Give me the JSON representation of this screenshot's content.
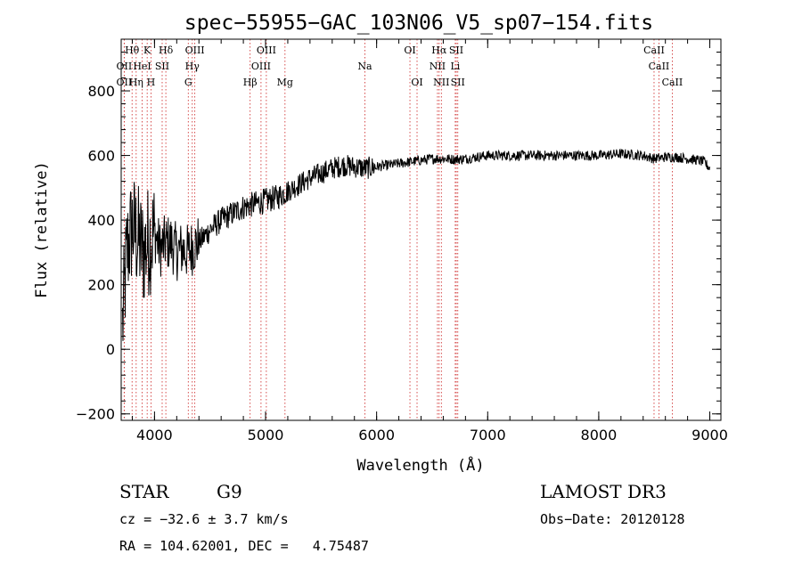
{
  "chart_data": {
    "type": "line",
    "title": "spec−55955−GAC_103N06_V5_sp07−154.fits",
    "xlabel": "Wavelength (Å)",
    "ylabel": "Flux (relative)",
    "xlim": [
      3700,
      9100
    ],
    "ylim": [
      -220,
      960
    ],
    "x_ticks": [
      {
        "value": 4000,
        "label": "4000"
      },
      {
        "value": 5000,
        "label": "5000"
      },
      {
        "value": 6000,
        "label": "6000"
      },
      {
        "value": 7000,
        "label": "7000"
      },
      {
        "value": 8000,
        "label": "8000"
      },
      {
        "value": 9000,
        "label": "9000"
      }
    ],
    "y_ticks": [
      {
        "value": -200,
        "label": "−200"
      },
      {
        "value": 0,
        "label": "0"
      },
      {
        "value": 200,
        "label": "200"
      },
      {
        "value": 400,
        "label": "400"
      },
      {
        "value": 600,
        "label": "600"
      },
      {
        "value": 800,
        "label": "800"
      }
    ],
    "spectrum_anchors": {
      "x": [
        3700,
        3750,
        3800,
        3850,
        3900,
        3950,
        4000,
        4050,
        4100,
        4150,
        4200,
        4250,
        4300,
        4350,
        4400,
        4500,
        4600,
        4700,
        4800,
        4900,
        5000,
        5100,
        5200,
        5300,
        5400,
        5500,
        5600,
        5700,
        5800,
        5900,
        6000,
        6100,
        6200,
        6300,
        6400,
        6500,
        6600,
        6700,
        6800,
        6900,
        7000,
        7200,
        7400,
        7600,
        7800,
        8000,
        8200,
        8400,
        8500,
        8600,
        8700,
        8800,
        8900,
        8950,
        9000
      ],
      "y": [
        0,
        300,
        380,
        340,
        300,
        340,
        360,
        310,
        330,
        330,
        300,
        310,
        300,
        320,
        330,
        370,
        400,
        420,
        440,
        450,
        460,
        470,
        490,
        510,
        530,
        545,
        560,
        570,
        565,
        560,
        565,
        570,
        575,
        580,
        585,
        590,
        590,
        588,
        590,
        595,
        600,
        600,
        600,
        600,
        600,
        600,
        605,
        600,
        590,
        595,
        595,
        590,
        585,
        580,
        560
      ],
      "noise_by_range": [
        {
          "from": 3700,
          "to": 4000,
          "amplitude": 180
        },
        {
          "from": 4000,
          "to": 4400,
          "amplitude": 90
        },
        {
          "from": 4400,
          "to": 5200,
          "amplitude": 40
        },
        {
          "from": 5200,
          "to": 6000,
          "amplitude": 35
        },
        {
          "from": 6000,
          "to": 9000,
          "amplitude": 16
        }
      ]
    },
    "emission_lines": [
      {
        "label": "OII",
        "wavelength": 3727,
        "row": 2
      },
      {
        "label": "OII",
        "wavelength": 3727,
        "row": 3
      },
      {
        "label": "Hθ",
        "wavelength": 3798,
        "row": 1
      },
      {
        "label": "Hη",
        "wavelength": 3835,
        "row": 3
      },
      {
        "label": "HeI",
        "wavelength": 3889,
        "row": 2
      },
      {
        "label": "K",
        "wavelength": 3934,
        "row": 1
      },
      {
        "label": "H",
        "wavelength": 3968,
        "row": 3
      },
      {
        "label": "SII",
        "wavelength": 4069,
        "row": 2
      },
      {
        "label": "Hδ",
        "wavelength": 4102,
        "row": 1
      },
      {
        "label": "G",
        "wavelength": 4304,
        "row": 3
      },
      {
        "label": "Hγ",
        "wavelength": 4340,
        "row": 2
      },
      {
        "label": "OIII",
        "wavelength": 4363,
        "row": 1
      },
      {
        "label": "Hβ",
        "wavelength": 4861,
        "row": 3
      },
      {
        "label": "OIII",
        "wavelength": 4959,
        "row": 2
      },
      {
        "label": "OIII",
        "wavelength": 5007,
        "row": 1
      },
      {
        "label": "Mg",
        "wavelength": 5175,
        "row": 3
      },
      {
        "label": "Na",
        "wavelength": 5894,
        "row": 2
      },
      {
        "label": "OI",
        "wavelength": 6300,
        "row": 1
      },
      {
        "label": "OI",
        "wavelength": 6364,
        "row": 3
      },
      {
        "label": "NII",
        "wavelength": 6548,
        "row": 2
      },
      {
        "label": "Hα",
        "wavelength": 6563,
        "row": 1
      },
      {
        "label": "NII",
        "wavelength": 6583,
        "row": 3
      },
      {
        "label": "SII",
        "wavelength": 6717,
        "row": 1
      },
      {
        "label": "Li",
        "wavelength": 6708,
        "row": 2
      },
      {
        "label": "SII",
        "wavelength": 6731,
        "row": 3
      },
      {
        "label": "CaII",
        "wavelength": 8498,
        "row": 1
      },
      {
        "label": "CaII",
        "wavelength": 8542,
        "row": 2
      },
      {
        "label": "CaII",
        "wavelength": 8662,
        "row": 3
      }
    ]
  },
  "footer": {
    "object_class": "STAR",
    "subclass": "G9",
    "survey": "LAMOST DR3",
    "redshift": "cz = −32.6 ± 3.7 km/s",
    "obs_date": "Obs−Date: 20120128",
    "coords": "RA = 104.62001, DEC =   4.75487"
  },
  "colors": {
    "spectrum": "#000000",
    "line_marker": "#cc2222",
    "axes": "#000000"
  }
}
